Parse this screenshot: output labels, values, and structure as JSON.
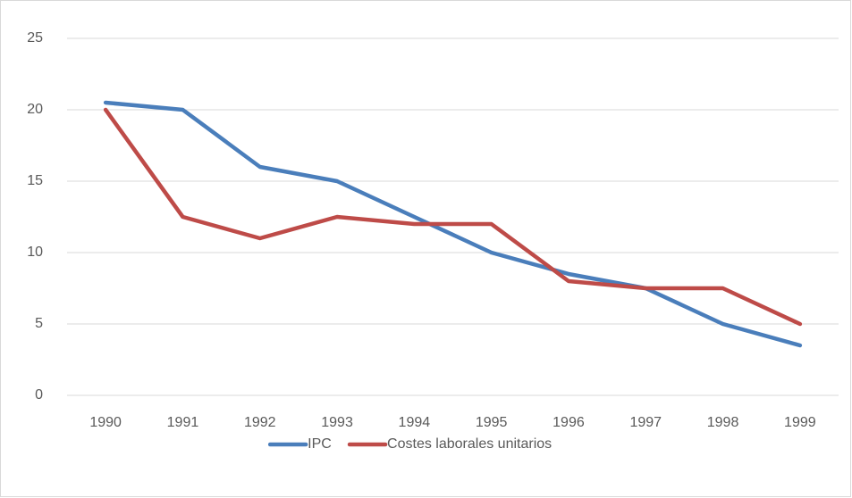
{
  "chart_data": {
    "type": "line",
    "categories": [
      "1990",
      "1991",
      "1992",
      "1993",
      "1994",
      "1995",
      "1996",
      "1997",
      "1998",
      "1999"
    ],
    "series": [
      {
        "name": "IPC",
        "color": "#4a7ebb",
        "values": [
          20.5,
          20,
          16,
          15,
          12.5,
          10,
          8.5,
          7.5,
          5,
          3.5
        ]
      },
      {
        "name": "Costes laborales unitarios",
        "color": "#be4b48",
        "values": [
          20,
          12.5,
          11,
          12.5,
          12,
          12,
          8,
          7.5,
          7.5,
          5
        ]
      }
    ],
    "ylim": [
      0,
      25
    ],
    "yticks": [
      0,
      5,
      10,
      15,
      20,
      25
    ],
    "grid": true,
    "legend": "bottom"
  }
}
